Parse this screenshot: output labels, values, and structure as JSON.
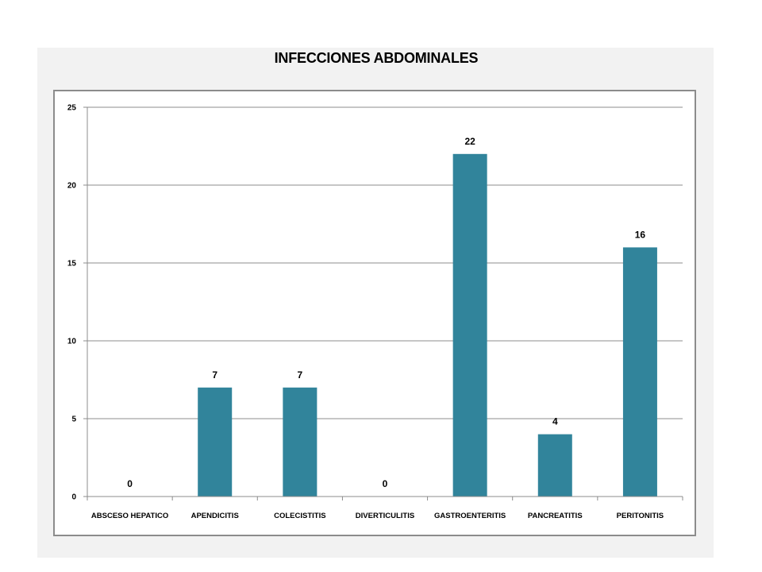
{
  "chart_data": {
    "type": "bar",
    "title": "INFECCIONES ABDOMINALES",
    "categories": [
      "ABSCESO HEPATICO",
      "APENDICITIS",
      "COLECISTITIS",
      "DIVERTICULITIS",
      "GASTROENTERITIS",
      "PANCREATITIS",
      "PERITONITIS"
    ],
    "values": [
      0,
      7,
      7,
      0,
      22,
      4,
      16
    ],
    "data_labels": [
      "0",
      "7",
      "7",
      "0",
      "22",
      "4",
      "16"
    ],
    "ylim": [
      0,
      25
    ],
    "yticks": [
      0,
      5,
      10,
      15,
      20,
      25
    ],
    "grid": true,
    "legend": "none",
    "bar_color": "#31849b"
  }
}
